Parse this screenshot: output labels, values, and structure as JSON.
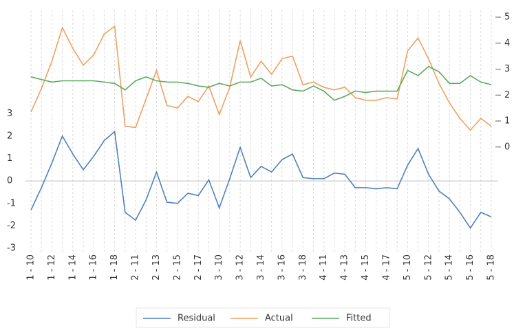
{
  "chart_data": {
    "type": "line",
    "categories": [
      "1 - 10",
      null,
      "1 - 12",
      null,
      "1 - 14",
      null,
      "1 - 16",
      null,
      "1 - 18",
      null,
      "2 - 11",
      null,
      "2 - 13",
      null,
      "2 - 15",
      null,
      "2 - 17",
      null,
      "3 - 10",
      null,
      "3 - 12",
      null,
      "3 - 14",
      null,
      "3 - 16",
      null,
      "3 - 18",
      null,
      "4 - 11",
      null,
      "4 - 13",
      null,
      "4 - 15",
      null,
      "4 - 17",
      null,
      "5 - 10",
      null,
      "5 - 12",
      null,
      "5 - 14",
      null,
      "5 - 16",
      null,
      "5 - 18"
    ],
    "series": [
      {
        "name": "Residual",
        "color": "#4f81bd",
        "values": [
          -1.3,
          -0.3,
          0.8,
          2.0,
          1.2,
          0.5,
          1.1,
          1.8,
          2.2,
          -1.4,
          -1.75,
          -0.85,
          0.4,
          -0.95,
          -1.0,
          -0.55,
          -0.65,
          0.05,
          -1.2,
          0.1,
          1.5,
          0.15,
          0.65,
          0.4,
          0.95,
          1.2,
          0.15,
          0.1,
          0.1,
          0.35,
          0.3,
          -0.3,
          -0.3,
          -0.35,
          -0.3,
          -0.35,
          0.7,
          1.45,
          0.3,
          -0.45,
          -0.8,
          -1.4,
          -2.1,
          -1.4,
          -1.6
        ]
      },
      {
        "name": "Actual",
        "color": "#f0a060",
        "axis": "y2",
        "values": [
          1.35,
          2.25,
          3.3,
          4.6,
          3.8,
          3.15,
          3.55,
          4.35,
          4.65,
          0.8,
          0.75,
          1.85,
          2.95,
          1.6,
          1.5,
          1.95,
          1.75,
          2.35,
          1.25,
          2.3,
          4.1,
          2.7,
          3.3,
          2.8,
          3.4,
          3.5,
          2.4,
          2.5,
          2.3,
          2.2,
          2.3,
          1.9,
          1.8,
          1.8,
          1.9,
          1.85,
          3.7,
          4.2,
          3.4,
          2.45,
          1.7,
          1.1,
          0.65,
          1.1,
          0.8
        ]
      },
      {
        "name": "Fitted",
        "color": "#5aab5a",
        "axis": "y2",
        "values": [
          2.7,
          2.6,
          2.5,
          2.55,
          2.55,
          2.55,
          2.55,
          2.5,
          2.45,
          2.2,
          2.55,
          2.7,
          2.55,
          2.5,
          2.5,
          2.45,
          2.35,
          2.3,
          2.45,
          2.35,
          2.5,
          2.5,
          2.65,
          2.35,
          2.4,
          2.2,
          2.15,
          2.35,
          2.15,
          1.8,
          1.95,
          2.15,
          2.1,
          2.15,
          2.15,
          2.15,
          2.95,
          2.75,
          3.1,
          2.9,
          2.45,
          2.45,
          2.75,
          2.5,
          2.4
        ]
      }
    ],
    "ylim": [
      -3,
      7.3
    ],
    "yticks": [
      -3,
      -2,
      -1,
      0,
      1,
      2,
      3
    ],
    "y2lim": [
      -3.9,
      5
    ],
    "y2ticks": [
      0,
      1,
      2,
      3,
      4,
      5
    ],
    "grid": true,
    "legend": "bottom"
  }
}
